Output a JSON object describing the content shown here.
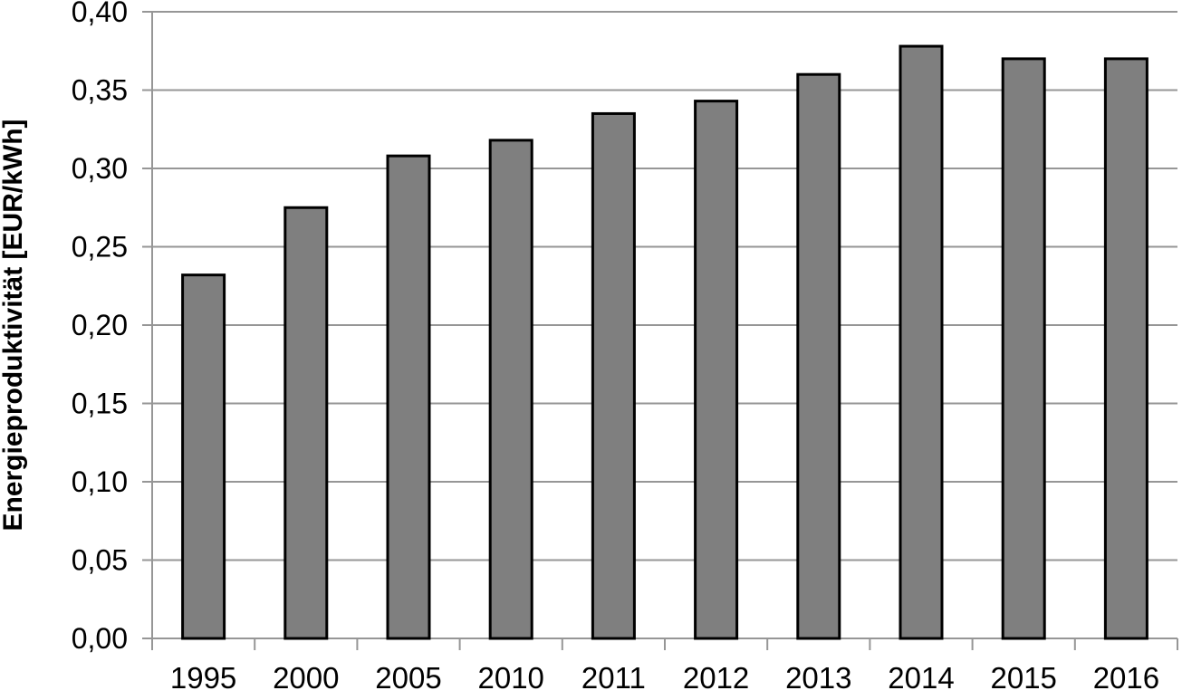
{
  "chart_data": {
    "type": "bar",
    "title": "",
    "xlabel": "",
    "ylabel": "Energieproduktivität [EUR/kWh]",
    "categories": [
      "1995",
      "2000",
      "2005",
      "2010",
      "2011",
      "2012",
      "2013",
      "2014",
      "2015",
      "2016"
    ],
    "values": [
      0.232,
      0.275,
      0.308,
      0.318,
      0.335,
      0.343,
      0.36,
      0.378,
      0.37,
      0.37
    ],
    "ylim": [
      0.0,
      0.4
    ],
    "ytick_step": 0.05,
    "ytick_labels": [
      "0,00",
      "0,05",
      "0,10",
      "0,15",
      "0,20",
      "0,25",
      "0,30",
      "0,35",
      "0,40"
    ],
    "grid": true,
    "legend": "none",
    "colors": {
      "bar_fill": "#7f7f7f",
      "bar_border": "#000000",
      "gridline": "#969696",
      "axis": "#969696",
      "text": "#000000",
      "background": "#ffffff"
    }
  }
}
